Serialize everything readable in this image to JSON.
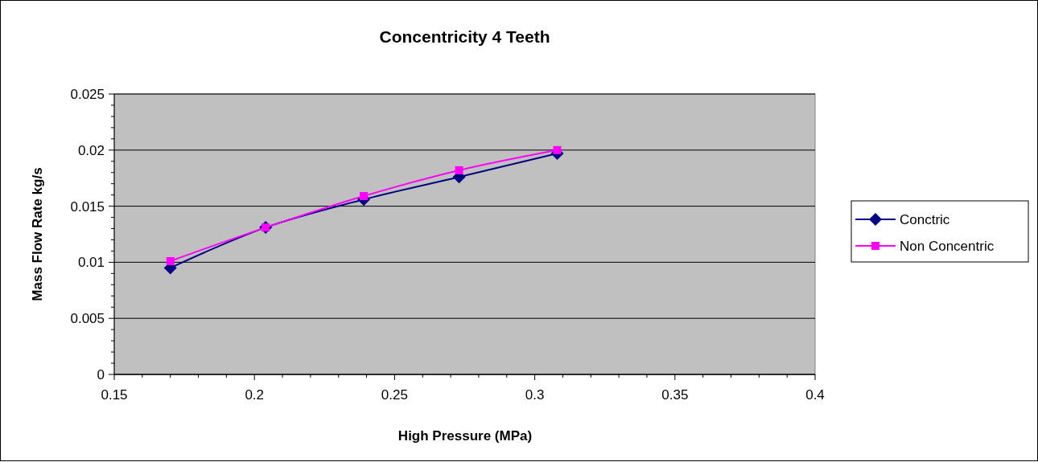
{
  "chart_data": {
    "type": "line",
    "title": "Concentricity 4 Teeth",
    "xlabel": "High Pressure (MPa)",
    "ylabel": "Mass Flow Rate kg/s",
    "x": [
      0.17,
      0.204,
      0.239,
      0.273,
      0.308
    ],
    "series": [
      {
        "name": "Conctric",
        "color": "#000080",
        "marker": "diamond",
        "values": [
          0.0095,
          0.0131,
          0.0156,
          0.0176,
          0.0197
        ]
      },
      {
        "name": "Non Concentric",
        "color": "#ff00ff",
        "marker": "square",
        "values": [
          0.0101,
          0.0131,
          0.0159,
          0.0182,
          0.02
        ]
      }
    ],
    "xlim": [
      0.15,
      0.4
    ],
    "xticks": [
      0.15,
      0.2,
      0.25,
      0.3,
      0.35,
      0.4
    ],
    "ylim": [
      0,
      0.025
    ],
    "yticks": [
      0,
      0.005,
      0.01,
      0.015,
      0.02,
      0.025
    ],
    "grid": "y",
    "legend": "right",
    "line_style": "solid"
  }
}
